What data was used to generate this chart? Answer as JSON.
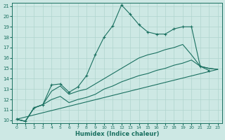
{
  "xlabel": "Humidex (Indice chaleur)",
  "background_color": "#cde8e4",
  "line_color": "#1a7060",
  "grid_color": "#afd4ce",
  "xlim": [
    0,
    23
  ],
  "ylim": [
    10,
    21
  ],
  "xticks": [
    0,
    1,
    2,
    3,
    4,
    5,
    6,
    7,
    8,
    9,
    10,
    11,
    12,
    13,
    14,
    15,
    16,
    17,
    18,
    19,
    20,
    21,
    22,
    23
  ],
  "yticks": [
    10,
    11,
    12,
    13,
    14,
    15,
    16,
    17,
    18,
    19,
    20,
    21
  ],
  "line1": {
    "x": [
      0,
      1,
      2,
      3,
      4,
      5,
      6,
      7,
      8,
      9,
      10,
      11,
      12,
      13,
      14,
      15,
      16,
      17,
      18,
      19,
      20,
      21,
      22,
      23
    ],
    "y": [
      10.1,
      9.9,
      11.2,
      11.5,
      13.4,
      13.5,
      12.7,
      13.2,
      14.3,
      16.3,
      18.0,
      19.1,
      21.1,
      20.2,
      19.2,
      18.5,
      18.3,
      18.3,
      18.8,
      19.0,
      19.0,
      15.2,
      14.8,
      null
    ]
  },
  "line2": {
    "x": [
      0,
      1,
      2,
      3,
      4,
      5,
      6,
      7,
      8,
      9,
      10,
      11,
      12,
      13,
      14,
      15,
      16,
      17,
      18,
      19,
      20,
      21,
      22,
      23
    ],
    "y": [
      10.1,
      9.9,
      11.2,
      11.5,
      12.8,
      13.3,
      12.5,
      12.8,
      13.0,
      13.5,
      14.0,
      14.5,
      15.0,
      15.5,
      16.0,
      16.3,
      16.5,
      16.8,
      17.0,
      17.3,
      16.3,
      15.2,
      15.0,
      14.9
    ]
  },
  "line3": {
    "x": [
      0,
      23
    ],
    "y": [
      10.1,
      14.9
    ]
  },
  "line4": {
    "x": [
      0,
      1,
      2,
      3,
      4,
      5,
      6,
      7,
      8,
      9,
      10,
      11,
      12,
      13,
      14,
      15,
      16,
      17,
      18,
      19,
      20,
      21,
      22,
      23
    ],
    "y": [
      10.1,
      9.9,
      11.2,
      11.5,
      12.0,
      12.3,
      11.7,
      12.0,
      12.2,
      12.5,
      13.0,
      13.3,
      13.7,
      14.0,
      14.3,
      14.5,
      14.8,
      15.0,
      15.3,
      15.5,
      15.8,
      15.2,
      15.0,
      14.9
    ]
  }
}
